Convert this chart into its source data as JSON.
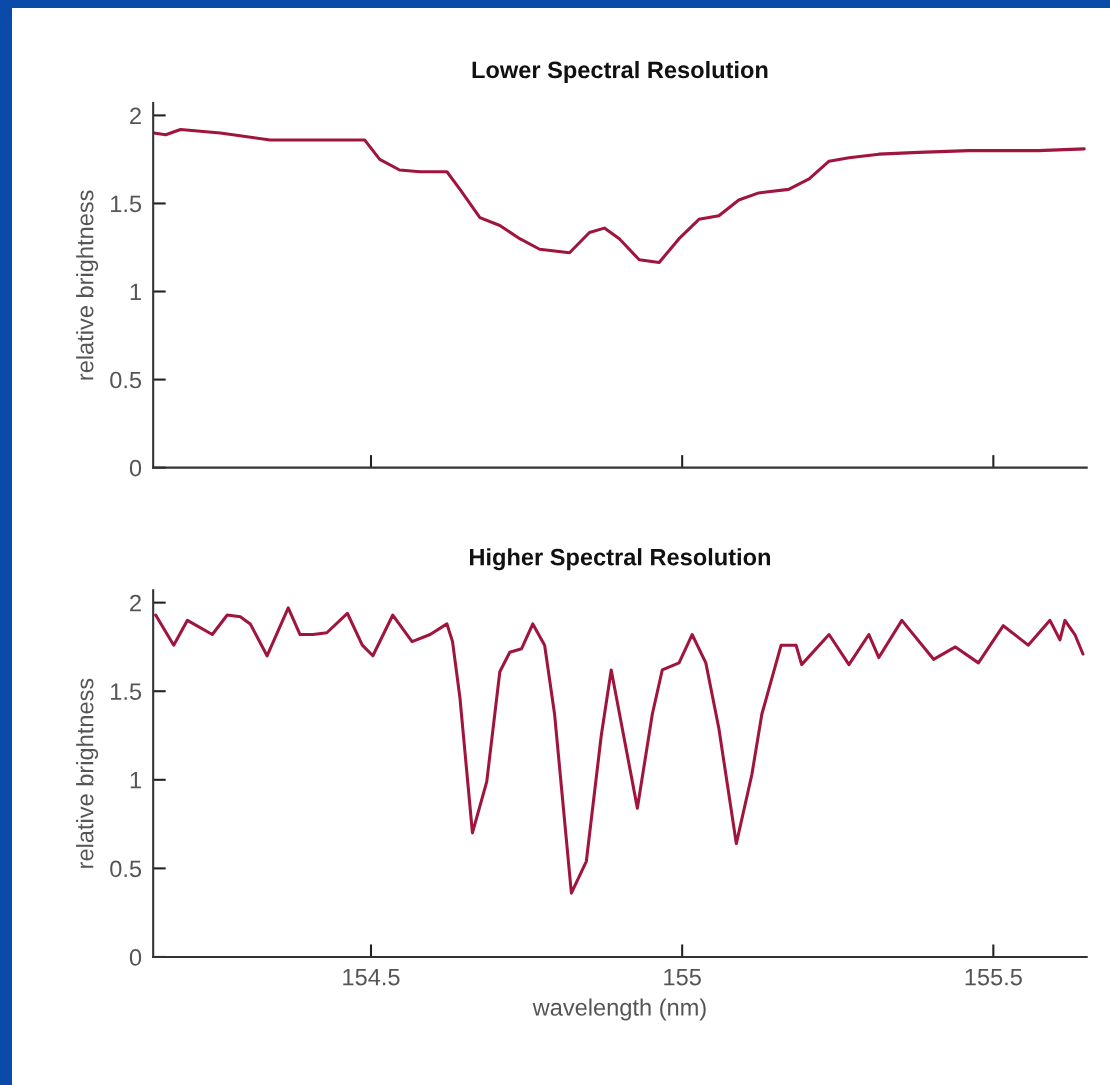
{
  "chart_data": [
    {
      "type": "line",
      "title": "Lower Spectral Resolution",
      "ylabel": "relative brightness",
      "xlim": [
        154.15,
        155.65
      ],
      "ylim": [
        0,
        2.07
      ],
      "xticks": [
        {
          "value": 154.5,
          "label": null
        },
        {
          "value": 155,
          "label": null
        },
        {
          "value": 155.5,
          "label": null
        }
      ],
      "yticks": [
        0,
        0.5,
        1,
        1.5,
        2
      ],
      "tick_labels": "y",
      "grid": false,
      "marker": "none",
      "line_style": "solid",
      "series": [
        {
          "color": "#a0153e",
          "x": [
            154.151,
            154.17,
            154.194,
            154.258,
            154.338,
            154.386,
            154.474,
            154.49,
            154.514,
            154.546,
            154.579,
            154.622,
            154.643,
            154.675,
            154.707,
            154.739,
            154.771,
            154.819,
            154.851,
            154.875,
            154.899,
            154.931,
            154.963,
            154.995,
            155.027,
            155.059,
            155.091,
            155.123,
            155.171,
            155.204,
            155.236,
            155.268,
            155.316,
            155.38,
            155.46,
            155.508,
            155.572,
            155.646
          ],
          "values": [
            1.9,
            1.89,
            1.92,
            1.9,
            1.86,
            1.86,
            1.86,
            1.86,
            1.75,
            1.69,
            1.68,
            1.68,
            1.58,
            1.42,
            1.375,
            1.3,
            1.24,
            1.22,
            1.335,
            1.36,
            1.3,
            1.18,
            1.165,
            1.3,
            1.41,
            1.43,
            1.52,
            1.56,
            1.58,
            1.64,
            1.74,
            1.76,
            1.78,
            1.79,
            1.8,
            1.8,
            1.8,
            1.81
          ]
        }
      ]
    },
    {
      "type": "line",
      "title": "Higher Spectral Resolution",
      "xlabel": "wavelength (nm)",
      "ylabel": "relative brightness",
      "xlim": [
        154.15,
        155.65
      ],
      "ylim": [
        0,
        2.07
      ],
      "xticks": [
        154.5,
        155,
        155.5
      ],
      "yticks": [
        0,
        0.5,
        1,
        1.5,
        2
      ],
      "grid": false,
      "marker": "none",
      "line_style": "solid",
      "series": [
        {
          "color": "#a0153e",
          "x": [
            154.154,
            154.183,
            154.205,
            154.245,
            154.269,
            154.29,
            154.306,
            154.333,
            154.367,
            154.386,
            154.407,
            154.429,
            154.462,
            154.486,
            154.503,
            154.535,
            154.566,
            154.595,
            154.622,
            154.631,
            154.643,
            154.663,
            154.686,
            154.707,
            154.723,
            154.742,
            154.76,
            154.779,
            154.795,
            154.822,
            154.846,
            154.87,
            154.886,
            154.928,
            154.952,
            154.968,
            154.995,
            155.016,
            155.038,
            155.059,
            155.087,
            155.112,
            155.128,
            155.159,
            155.183,
            155.192,
            155.236,
            155.268,
            155.3,
            155.316,
            155.353,
            155.404,
            155.439,
            155.476,
            155.516,
            155.556,
            155.591,
            155.607,
            155.615,
            155.631,
            155.644
          ],
          "values": [
            1.93,
            1.76,
            1.9,
            1.82,
            1.93,
            1.92,
            1.88,
            1.7,
            1.97,
            1.82,
            1.82,
            1.83,
            1.94,
            1.76,
            1.7,
            1.93,
            1.78,
            1.82,
            1.88,
            1.78,
            1.46,
            0.7,
            0.99,
            1.61,
            1.72,
            1.74,
            1.88,
            1.76,
            1.37,
            0.36,
            0.54,
            1.25,
            1.62,
            0.84,
            1.37,
            1.62,
            1.66,
            1.82,
            1.66,
            1.29,
            0.64,
            1.03,
            1.37,
            1.76,
            1.76,
            1.65,
            1.82,
            1.65,
            1.82,
            1.69,
            1.9,
            1.68,
            1.75,
            1.66,
            1.87,
            1.76,
            1.9,
            1.79,
            1.9,
            1.82,
            1.71
          ]
        }
      ]
    }
  ]
}
